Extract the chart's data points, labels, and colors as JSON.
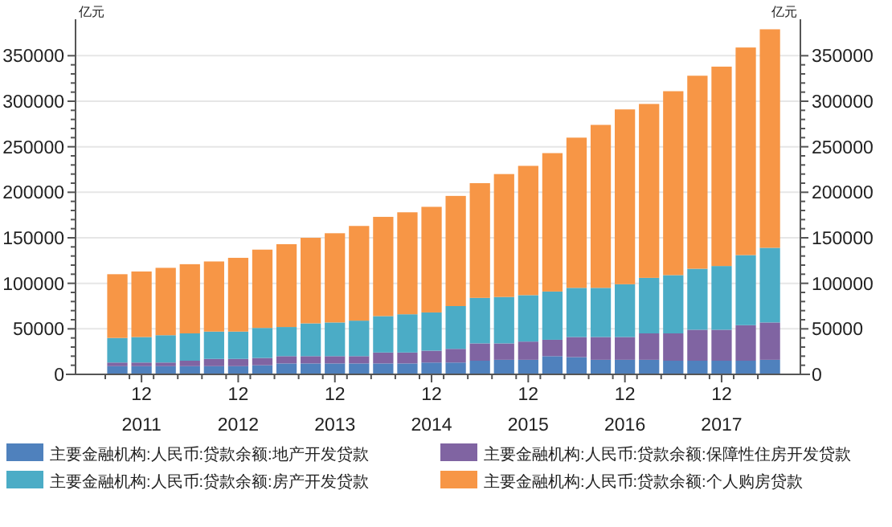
{
  "chart_data": {
    "type": "bar",
    "stacked": true,
    "ylabel": "亿元",
    "y2label": "亿元",
    "categories": [
      null,
      "12 2011",
      null,
      null,
      null,
      "12 2012",
      null,
      null,
      null,
      "12 2013",
      null,
      null,
      null,
      "12 2014",
      null,
      null,
      null,
      "12 2015",
      null,
      null,
      null,
      "12 2016",
      null,
      null,
      null,
      "12 2017",
      null,
      null
    ],
    "series": [
      {
        "name": "主要金融机构:人民币:贷款余额:地产开发贷款",
        "color": "#4f81bd",
        "values": [
          9000,
          9000,
          9000,
          9000,
          9000,
          9000,
          10000,
          12000,
          12000,
          12000,
          12000,
          12000,
          12000,
          13000,
          13000,
          15000,
          16000,
          16000,
          20000,
          19000,
          16000,
          16000,
          16000,
          15000,
          15000,
          15000,
          15000,
          16000
        ]
      },
      {
        "name": "主要金融机构:人民币:贷款余额:保障性住房开发贷款",
        "color": "#8064a2",
        "values": [
          4000,
          4000,
          4000,
          6000,
          8000,
          8000,
          8000,
          8000,
          8000,
          8000,
          8000,
          12000,
          12000,
          13000,
          15000,
          19000,
          18000,
          20000,
          18000,
          22000,
          25000,
          25000,
          29000,
          30000,
          34000,
          34000,
          39000,
          41000
        ]
      },
      {
        "name": "主要金融机构:人民币:贷款余额:房产开发贷款",
        "color": "#4bacc6",
        "values": [
          27000,
          28000,
          30000,
          30000,
          30000,
          30000,
          33000,
          32000,
          36000,
          37000,
          39000,
          40000,
          42000,
          42000,
          47000,
          50000,
          51000,
          51000,
          53000,
          54000,
          54000,
          58000,
          61000,
          64000,
          67000,
          70000,
          77000,
          82000
        ]
      },
      {
        "name": "主要金融机构:人民币:贷款余额:个人购房贷款",
        "color": "#f79646",
        "values": [
          70000,
          72000,
          74000,
          76000,
          77000,
          81000,
          86000,
          91000,
          94000,
          98000,
          104000,
          109000,
          112000,
          116000,
          121000,
          126000,
          135000,
          142000,
          152000,
          165000,
          179000,
          192000,
          191000,
          202000,
          212000,
          219000,
          228000,
          240000
        ]
      }
    ],
    "ylim": [
      0,
      390000
    ],
    "yticks": [
      0,
      50000,
      100000,
      150000,
      200000,
      250000,
      300000,
      350000
    ],
    "y2lim": [
      0,
      390000
    ],
    "y2ticks": [
      0,
      50000,
      100000,
      150000,
      200000,
      250000,
      300000,
      350000
    ],
    "grid": "y",
    "legend": "bottom"
  }
}
